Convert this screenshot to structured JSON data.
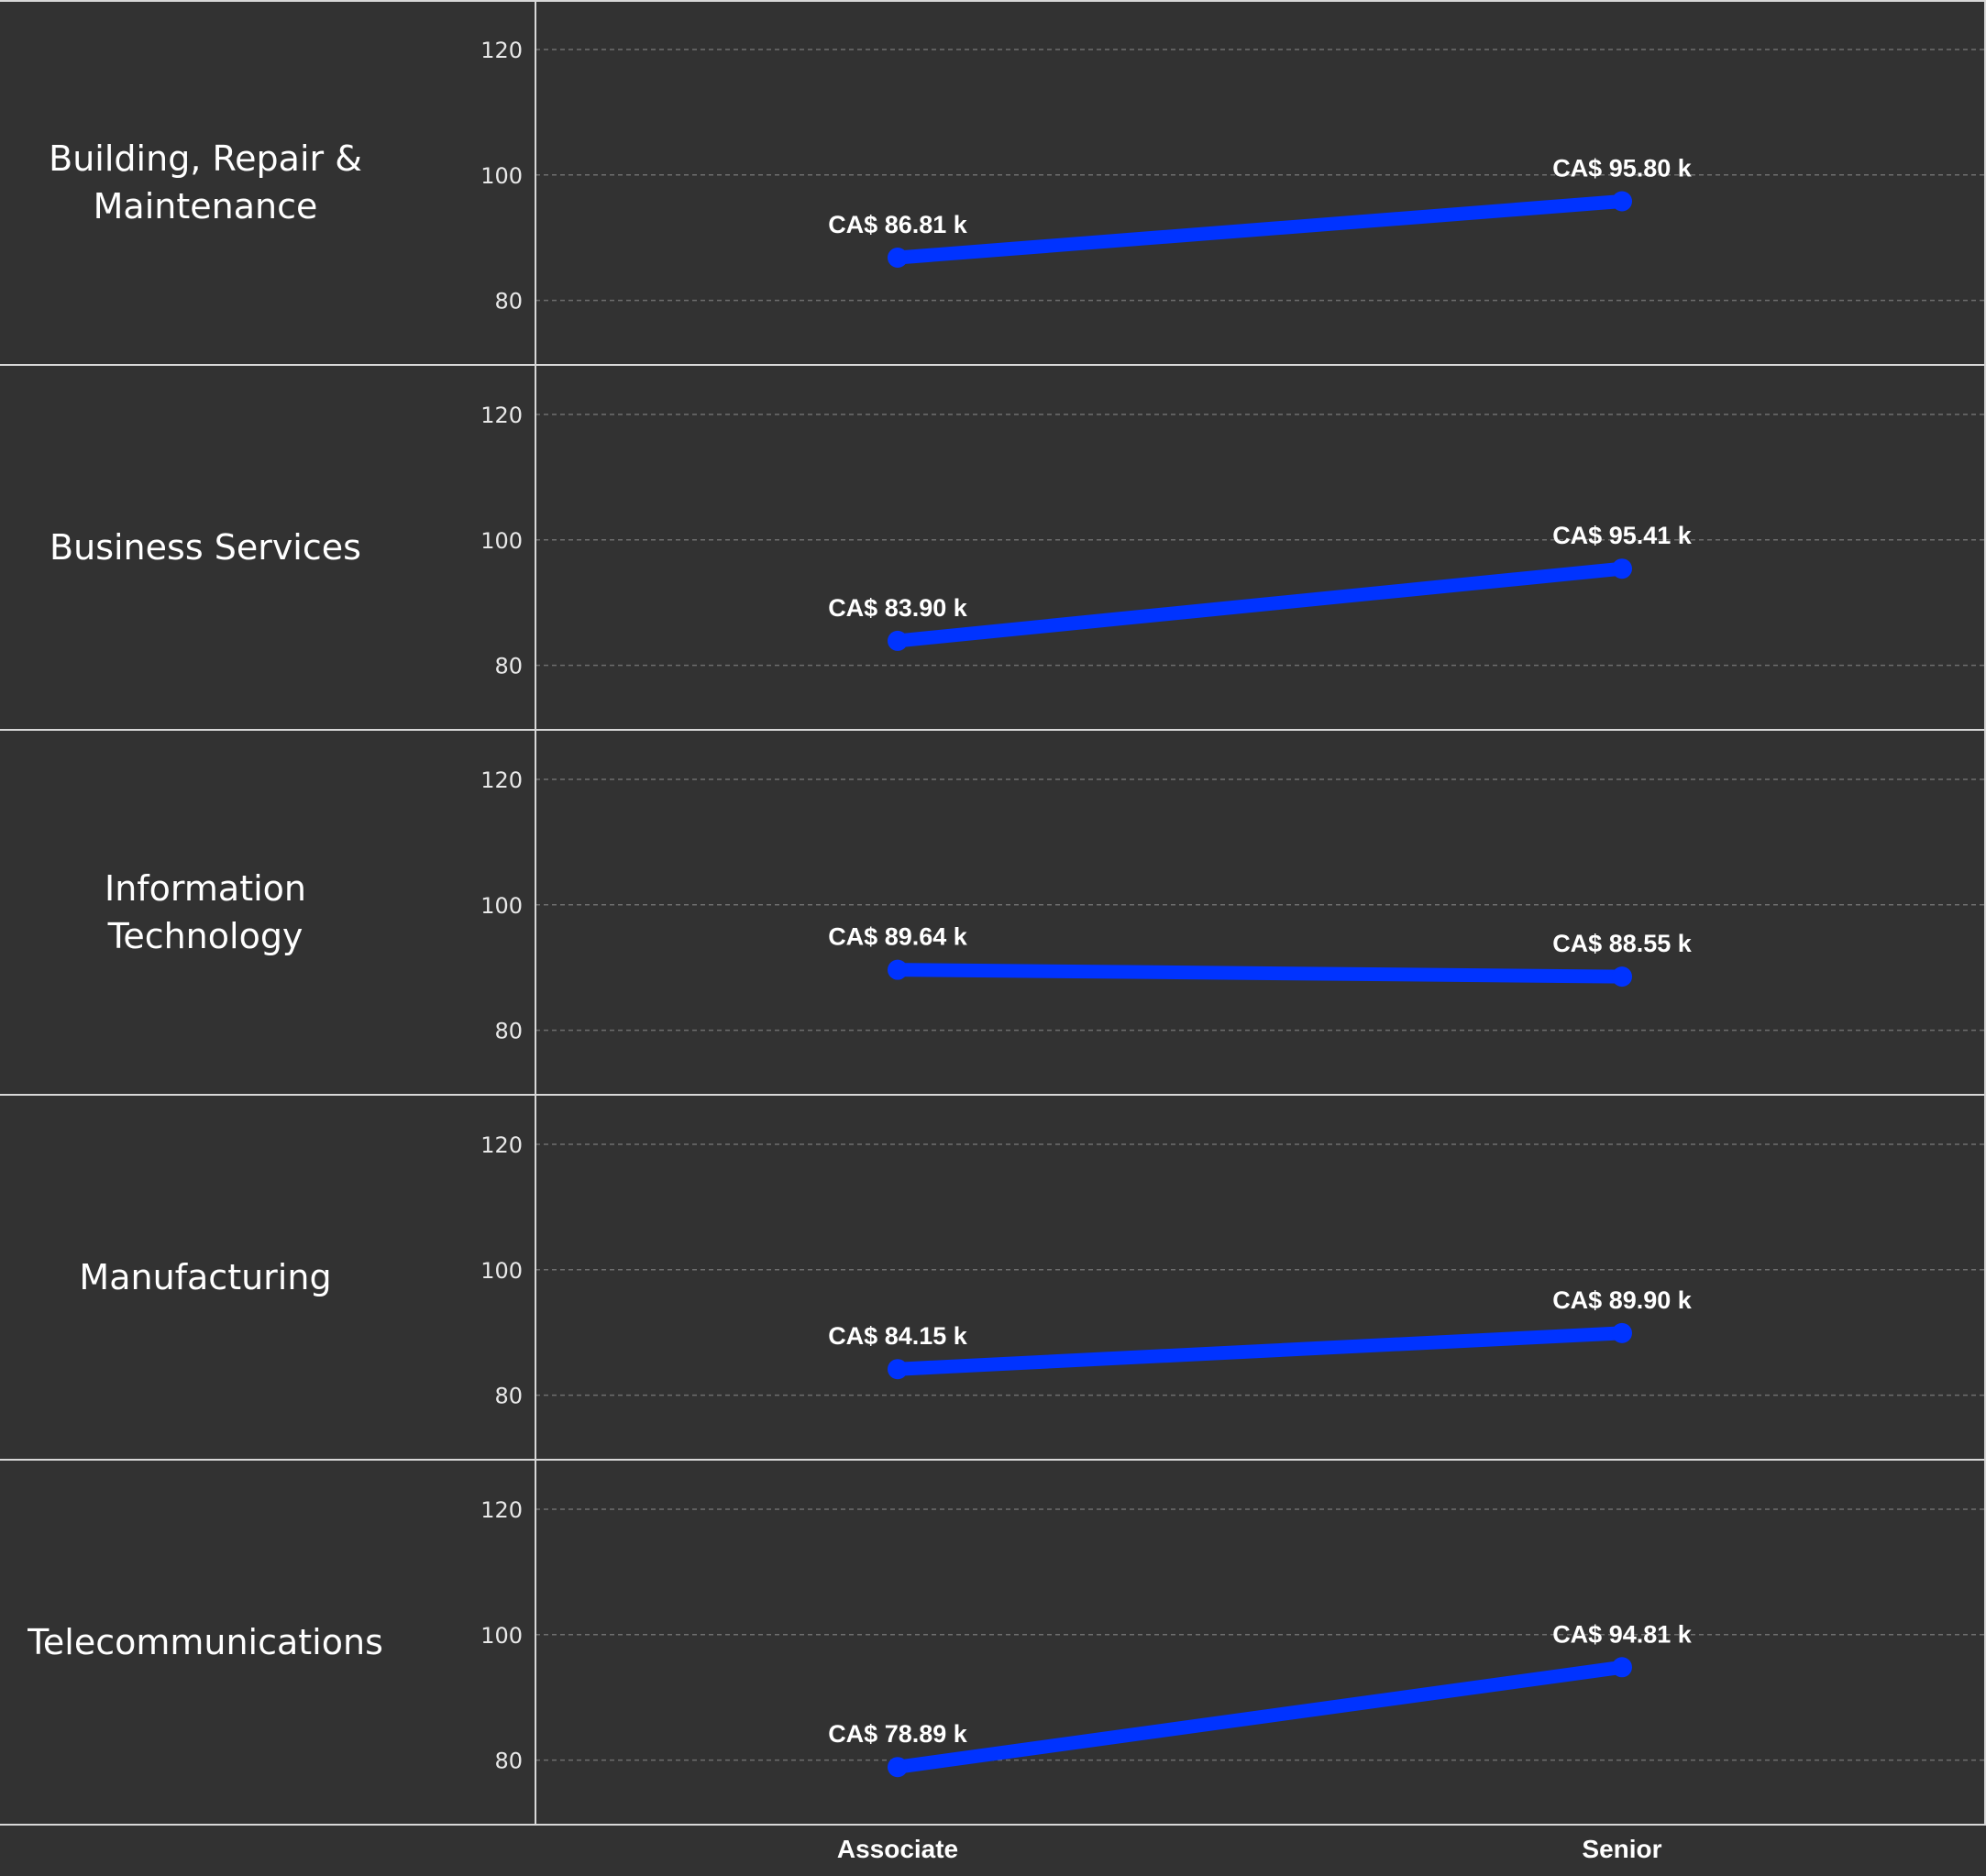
{
  "chart_data": {
    "type": "line",
    "facets": [
      "Building, Repair & Maintenance",
      "Business Services",
      "Information Technology",
      "Manufacturing",
      "Telecommunications"
    ],
    "facet_label_lines": [
      [
        "Building, Repair &",
        "Maintenance"
      ],
      [
        "Business Services"
      ],
      [
        "Information",
        "Technology"
      ],
      [
        "Manufacturing"
      ],
      [
        "Telecommunications"
      ]
    ],
    "x": [
      "Associate",
      "Senior"
    ],
    "values": [
      [
        86.81,
        95.8
      ],
      [
        83.9,
        95.41
      ],
      [
        89.64,
        88.55
      ],
      [
        84.15,
        89.9
      ],
      [
        78.89,
        94.81
      ]
    ],
    "labels": [
      [
        "CA$ 86.81 k",
        "CA$ 95.80 k"
      ],
      [
        "CA$ 83.90 k",
        "CA$ 95.41 k"
      ],
      [
        "CA$ 89.64 k",
        "CA$ 88.55 k"
      ],
      [
        "CA$ 84.15 k",
        "CA$ 89.90 k"
      ],
      [
        "CA$ 78.89 k",
        "CA$ 94.81 k"
      ]
    ],
    "yticks": [
      80,
      100,
      120
    ],
    "ytick_labels": [
      "80",
      "100",
      "120"
    ],
    "ylim": [
      70,
      127.6
    ],
    "grid": true,
    "colors": {
      "background": "#323232",
      "line": "#0033ff",
      "divider": "#d8d8d8",
      "grid": "#6e6e6e",
      "text": "#ffffff"
    }
  }
}
